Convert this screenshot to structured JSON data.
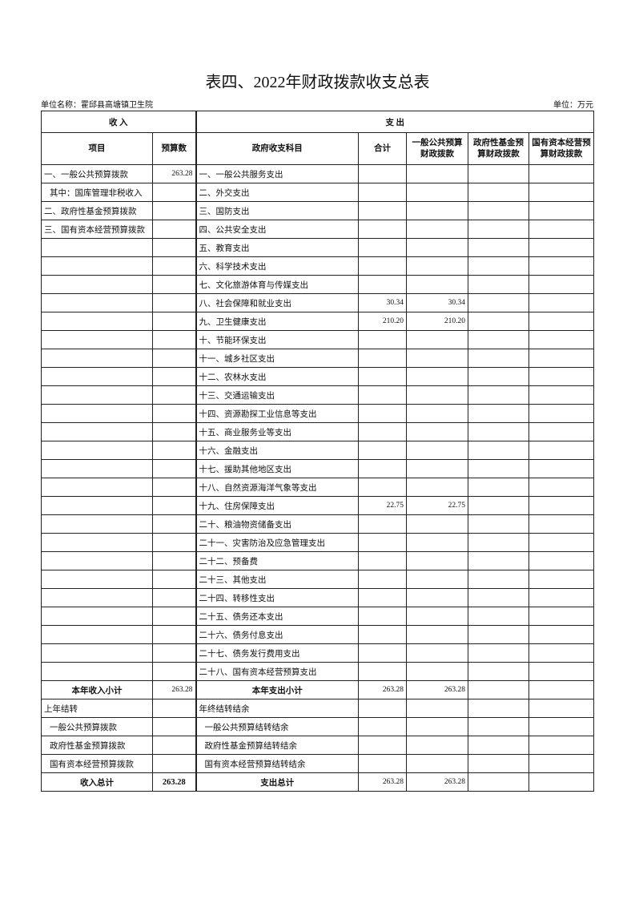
{
  "header": {
    "title": "表四、2022年财政拨款收支总表",
    "unit_left": "单位名称：霍邱县高塘镇卫生院",
    "unit_right": "单位：万元"
  },
  "table": {
    "group_headers": [
      "收 入",
      "支 出"
    ],
    "columns": [
      "项目",
      "预算数",
      "政府收支科目",
      "合计",
      "一般公共预算财政拨款",
      "政府性基金预算财政拨款",
      "国有资本经营预算财政拨款"
    ],
    "rows": [
      [
        "一、一般公共预算拨款",
        "263.28",
        "一、一般公共服务支出",
        null,
        null,
        null,
        null
      ],
      [
        "其中：国库管理非税收入",
        null,
        "二、外交支出",
        null,
        null,
        null,
        null
      ],
      [
        "二、政府性基金预算拨款",
        null,
        "三、国防支出",
        null,
        null,
        null,
        null
      ],
      [
        "三、国有资本经营预算拨款",
        null,
        "四、公共安全支出",
        null,
        null,
        null,
        null
      ],
      [
        null,
        null,
        "五、教育支出",
        null,
        null,
        null,
        null
      ],
      [
        null,
        null,
        "六、科学技术支出",
        null,
        null,
        null,
        null
      ],
      [
        null,
        null,
        "七、文化旅游体育与传媒支出",
        null,
        null,
        null,
        null
      ],
      [
        null,
        null,
        "八、社会保障和就业支出",
        "30.34",
        "30.34",
        null,
        null
      ],
      [
        null,
        null,
        "九、卫生健康支出",
        "210.20",
        "210.20",
        null,
        null
      ],
      [
        null,
        null,
        "十、节能环保支出",
        null,
        null,
        null,
        null
      ],
      [
        null,
        null,
        "十一、城乡社区支出",
        null,
        null,
        null,
        null
      ],
      [
        null,
        null,
        "十二、农林水支出",
        null,
        null,
        null,
        null
      ],
      [
        null,
        null,
        "十三、交通运输支出",
        null,
        null,
        null,
        null
      ],
      [
        null,
        null,
        "十四、资源勘探工业信息等支出",
        null,
        null,
        null,
        null
      ],
      [
        null,
        null,
        "十五、商业服务业等支出",
        null,
        null,
        null,
        null
      ],
      [
        null,
        null,
        "十六、金融支出",
        null,
        null,
        null,
        null
      ],
      [
        null,
        null,
        "十七、援助其他地区支出",
        null,
        null,
        null,
        null
      ],
      [
        null,
        null,
        "十八、自然资源海洋气象等支出",
        null,
        null,
        null,
        null
      ],
      [
        null,
        null,
        "十九、住房保障支出",
        "22.75",
        "22.75",
        null,
        null
      ],
      [
        null,
        null,
        "二十、粮油物资储备支出",
        null,
        null,
        null,
        null
      ],
      [
        null,
        null,
        "二十一、灾害防治及应急管理支出",
        null,
        null,
        null,
        null
      ],
      [
        null,
        null,
        "二十二、预备费",
        null,
        null,
        null,
        null
      ],
      [
        null,
        null,
        "二十三、其他支出",
        null,
        null,
        null,
        null
      ],
      [
        null,
        null,
        "二十四、转移性支出",
        null,
        null,
        null,
        null
      ],
      [
        null,
        null,
        "二十五、债务还本支出",
        null,
        null,
        null,
        null
      ],
      [
        null,
        null,
        "二十六、债务付息支出",
        null,
        null,
        null,
        null
      ],
      [
        null,
        null,
        "二十七、债务发行费用支出",
        null,
        null,
        null,
        null
      ],
      [
        null,
        null,
        "二十八、国有资本经营预算支出",
        null,
        null,
        null,
        null
      ],
      [
        "本年收入小计",
        "263.28",
        "本年支出小计",
        "263.28",
        "263.28",
        null,
        null
      ],
      [
        "上年结转",
        null,
        "年终结转结余",
        null,
        null,
        null,
        null
      ],
      [
        "一般公共预算拨款",
        null,
        "一般公共预算结转结余",
        null,
        null,
        null,
        null
      ],
      [
        "政府性基金预算拨款",
        null,
        "政府性基金预算结转结余",
        null,
        null,
        null,
        null
      ],
      [
        "国有资本经营预算拨款",
        null,
        "国有资本经营预算结转结余",
        null,
        null,
        null,
        null
      ],
      [
        "收入总计",
        "263.28",
        "支出总计",
        "263.28",
        "263.28",
        null,
        null
      ]
    ]
  }
}
